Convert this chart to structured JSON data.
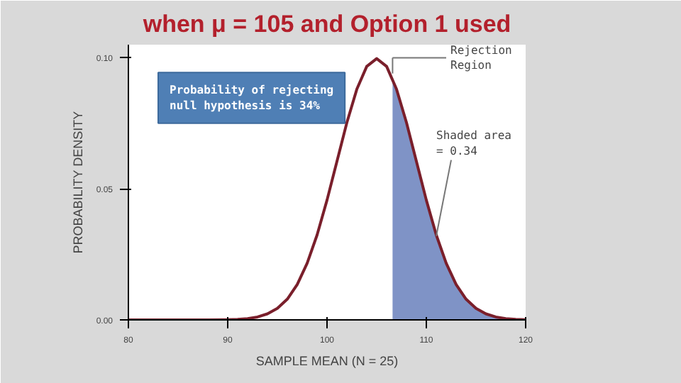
{
  "chart_data": {
    "type": "line",
    "title": "when μ = 105 and Option 1 used",
    "xlabel": "SAMPLE MEAN (N = 25)",
    "ylabel": "PROBABILITY DENSITY",
    "xlim": [
      80,
      120
    ],
    "ylim": [
      0,
      0.105
    ],
    "xticks": [
      80,
      90,
      100,
      110,
      120
    ],
    "yticks": [
      {
        "value": 0,
        "label": "0.00"
      },
      {
        "value": 0.05,
        "label": "0.05"
      },
      {
        "value": 0.1,
        "label": "0.10"
      }
    ],
    "grid": false,
    "series": [
      {
        "color": "#7a1f2b",
        "x": [
          80,
          85,
          88,
          90,
          91,
          92,
          93,
          94,
          95,
          96,
          97,
          98,
          99,
          100,
          101,
          102,
          103,
          104,
          105,
          106,
          107,
          108,
          109,
          110,
          111,
          112,
          113,
          114,
          115,
          116,
          117,
          118,
          119,
          120
        ],
        "values": [
          0,
          0,
          0,
          0.0001,
          0.0002,
          0.0005,
          0.0011,
          0.0023,
          0.0044,
          0.0079,
          0.0135,
          0.0216,
          0.0324,
          0.0457,
          0.0605,
          0.0753,
          0.088,
          0.0967,
          0.0997,
          0.0967,
          0.088,
          0.0753,
          0.0605,
          0.0457,
          0.0324,
          0.0216,
          0.0135,
          0.0079,
          0.0044,
          0.0023,
          0.0011,
          0.0005,
          0.0002,
          0.0001
        ]
      },
      {
        "type": "area",
        "color": "#7f93c6",
        "x": [
          106.6,
          107,
          108,
          109,
          110,
          111,
          112,
          113,
          114,
          115,
          116,
          117,
          118,
          119,
          120
        ],
        "values": [
          0.092,
          0.088,
          0.0753,
          0.0605,
          0.0457,
          0.0324,
          0.0216,
          0.0135,
          0.0079,
          0.0044,
          0.0023,
          0.0011,
          0.0005,
          0.0002,
          0.0001
        ]
      }
    ],
    "annotations": [
      "Probability of rejecting\nnull hypothesis is 34%",
      "Rejection\nRegion",
      {
        "text": "Shaded area\n= 0.34",
        "x": 111,
        "y": 0.032
      }
    ]
  }
}
